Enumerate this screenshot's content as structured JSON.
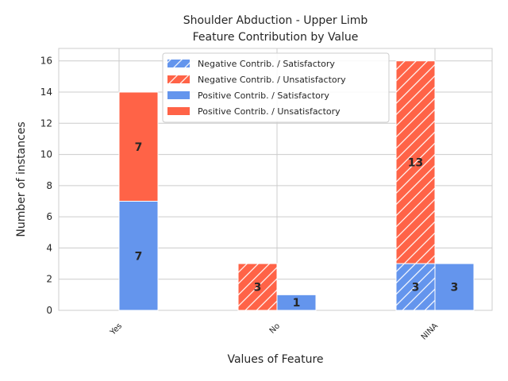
{
  "chart_data": {
    "type": "bar",
    "title": [
      "Shoulder Abduction - Upper Limb",
      "Feature Contribution by Value"
    ],
    "xlabel": "Values of Feature",
    "ylabel": "Number of instances",
    "categories": [
      "Yes",
      "No",
      "NINA"
    ],
    "ylim": [
      0,
      16.8
    ],
    "yticks": [
      0,
      2,
      4,
      6,
      8,
      10,
      12,
      14,
      16
    ],
    "grid": true,
    "legend_position": "top-center",
    "groups": [
      {
        "name": "Negative Contrib.",
        "hatched": true,
        "stack": [
          {
            "name": "Negative Contrib. / Satisfactory",
            "color": "#6495ed",
            "values": [
              0,
              0,
              3
            ]
          },
          {
            "name": "Negative Contrib. / Unsatisfactory",
            "color": "#ff6347",
            "values": [
              0,
              3,
              13
            ]
          }
        ]
      },
      {
        "name": "Positive Contrib.",
        "hatched": false,
        "stack": [
          {
            "name": "Positive Contrib. / Satisfactory",
            "color": "#6495ed",
            "values": [
              7,
              1,
              3
            ]
          },
          {
            "name": "Positive Contrib. / Unsatisfactory",
            "color": "#ff6347",
            "values": [
              7,
              0,
              0
            ]
          }
        ]
      }
    ],
    "legend": [
      "Negative Contrib. / Satisfactory",
      "Negative Contrib. / Unsatisfactory",
      "Positive Contrib. / Satisfactory",
      "Positive Contrib. / Unsatisfactory"
    ]
  }
}
